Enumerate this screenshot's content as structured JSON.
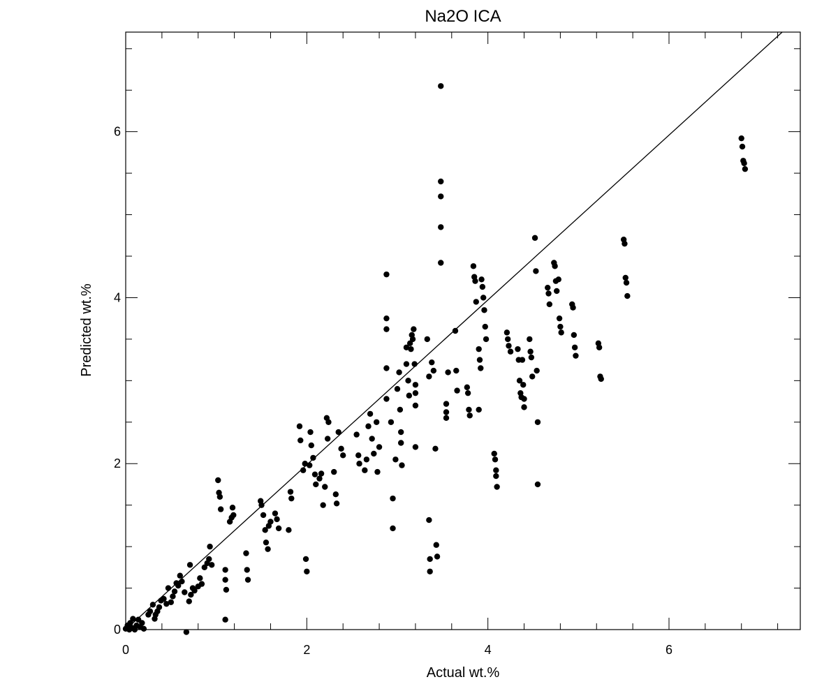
{
  "chart_data": {
    "type": "scatter",
    "title": "Na2O ICA",
    "xlabel": "Actual wt.%",
    "ylabel": "Predicted wt.%",
    "xlim": [
      0,
      7.45
    ],
    "ylim": [
      0,
      7.2
    ],
    "xticks": [
      0,
      2,
      4,
      6
    ],
    "xtick_labels": [
      "0",
      "2",
      "4",
      "6"
    ],
    "yticks": [
      0,
      2,
      4,
      6
    ],
    "ytick_labels": [
      "0",
      "2",
      "4",
      "6"
    ],
    "grid": false,
    "reference_line": {
      "from": [
        0,
        0
      ],
      "to": [
        7.25,
        7.2
      ]
    },
    "series": [
      {
        "marker_color": "#000000",
        "points": [
          [
            0.0,
            0.01
          ],
          [
            0.02,
            0.05
          ],
          [
            0.04,
            0.0
          ],
          [
            0.05,
            0.08
          ],
          [
            0.07,
            0.02
          ],
          [
            0.08,
            0.13
          ],
          [
            0.1,
            0.0
          ],
          [
            0.12,
            0.05
          ],
          [
            0.14,
            0.12
          ],
          [
            0.16,
            0.03
          ],
          [
            0.18,
            0.08
          ],
          [
            0.2,
            0.01
          ],
          [
            0.25,
            0.18
          ],
          [
            0.27,
            0.22
          ],
          [
            0.3,
            0.3
          ],
          [
            0.32,
            0.13
          ],
          [
            0.33,
            0.18
          ],
          [
            0.35,
            0.22
          ],
          [
            0.37,
            0.27
          ],
          [
            0.39,
            0.35
          ],
          [
            0.42,
            0.37
          ],
          [
            0.45,
            0.31
          ],
          [
            0.47,
            0.5
          ],
          [
            0.5,
            0.33
          ],
          [
            0.52,
            0.4
          ],
          [
            0.54,
            0.46
          ],
          [
            0.56,
            0.56
          ],
          [
            0.58,
            0.53
          ],
          [
            0.6,
            0.65
          ],
          [
            0.62,
            0.58
          ],
          [
            0.65,
            0.45
          ],
          [
            0.67,
            -0.03
          ],
          [
            0.7,
            0.34
          ],
          [
            0.71,
            0.78
          ],
          [
            0.72,
            0.42
          ],
          [
            0.74,
            0.5
          ],
          [
            0.76,
            0.47
          ],
          [
            0.8,
            0.52
          ],
          [
            0.82,
            0.62
          ],
          [
            0.84,
            0.55
          ],
          [
            0.87,
            0.75
          ],
          [
            0.9,
            0.8
          ],
          [
            0.92,
            0.85
          ],
          [
            0.93,
            1.0
          ],
          [
            0.95,
            0.78
          ],
          [
            1.02,
            1.8
          ],
          [
            1.03,
            1.65
          ],
          [
            1.04,
            1.6
          ],
          [
            1.05,
            1.45
          ],
          [
            1.1,
            0.72
          ],
          [
            1.1,
            0.6
          ],
          [
            1.11,
            0.48
          ],
          [
            1.1,
            0.12
          ],
          [
            1.15,
            1.3
          ],
          [
            1.17,
            1.35
          ],
          [
            1.18,
            1.47
          ],
          [
            1.19,
            1.38
          ],
          [
            1.33,
            0.92
          ],
          [
            1.34,
            0.72
          ],
          [
            1.35,
            0.6
          ],
          [
            1.49,
            1.55
          ],
          [
            1.5,
            1.5
          ],
          [
            1.52,
            1.38
          ],
          [
            1.54,
            1.2
          ],
          [
            1.55,
            1.05
          ],
          [
            1.57,
            0.97
          ],
          [
            1.58,
            1.25
          ],
          [
            1.6,
            1.3
          ],
          [
            1.65,
            1.4
          ],
          [
            1.67,
            1.33
          ],
          [
            1.69,
            1.22
          ],
          [
            1.8,
            1.2
          ],
          [
            1.82,
            1.66
          ],
          [
            1.83,
            1.58
          ],
          [
            1.92,
            2.45
          ],
          [
            1.93,
            2.28
          ],
          [
            1.96,
            1.92
          ],
          [
            1.98,
            2.0
          ],
          [
            1.99,
            0.85
          ],
          [
            2.0,
            0.7
          ],
          [
            2.03,
            1.98
          ],
          [
            2.04,
            2.38
          ],
          [
            2.05,
            2.22
          ],
          [
            2.07,
            2.07
          ],
          [
            2.09,
            1.87
          ],
          [
            2.1,
            1.75
          ],
          [
            2.14,
            1.82
          ],
          [
            2.16,
            1.88
          ],
          [
            2.18,
            1.5
          ],
          [
            2.2,
            1.72
          ],
          [
            2.22,
            2.55
          ],
          [
            2.23,
            2.3
          ],
          [
            2.24,
            2.5
          ],
          [
            2.3,
            1.9
          ],
          [
            2.32,
            1.63
          ],
          [
            2.33,
            1.52
          ],
          [
            2.35,
            2.38
          ],
          [
            2.38,
            2.18
          ],
          [
            2.4,
            2.1
          ],
          [
            2.55,
            2.35
          ],
          [
            2.57,
            2.1
          ],
          [
            2.58,
            2.0
          ],
          [
            2.64,
            1.92
          ],
          [
            2.66,
            2.05
          ],
          [
            2.68,
            2.45
          ],
          [
            2.7,
            2.6
          ],
          [
            2.72,
            2.3
          ],
          [
            2.74,
            2.12
          ],
          [
            2.77,
            2.5
          ],
          [
            2.78,
            1.9
          ],
          [
            2.8,
            2.2
          ],
          [
            2.88,
            4.28
          ],
          [
            2.88,
            3.75
          ],
          [
            2.88,
            3.62
          ],
          [
            2.88,
            3.15
          ],
          [
            2.88,
            2.78
          ],
          [
            2.93,
            2.5
          ],
          [
            2.95,
            1.58
          ],
          [
            2.95,
            1.22
          ],
          [
            2.98,
            2.05
          ],
          [
            3.0,
            2.9
          ],
          [
            3.02,
            3.1
          ],
          [
            3.03,
            2.65
          ],
          [
            3.04,
            2.38
          ],
          [
            3.04,
            2.25
          ],
          [
            3.05,
            1.98
          ],
          [
            3.1,
            3.4
          ],
          [
            3.1,
            3.2
          ],
          [
            3.12,
            3.0
          ],
          [
            3.13,
            2.82
          ],
          [
            3.14,
            3.45
          ],
          [
            3.15,
            3.38
          ],
          [
            3.16,
            3.55
          ],
          [
            3.17,
            3.5
          ],
          [
            3.18,
            3.62
          ],
          [
            3.19,
            3.2
          ],
          [
            3.2,
            2.95
          ],
          [
            3.2,
            2.85
          ],
          [
            3.2,
            2.7
          ],
          [
            3.2,
            2.2
          ],
          [
            3.33,
            3.5
          ],
          [
            3.35,
            3.05
          ],
          [
            3.35,
            1.32
          ],
          [
            3.36,
            0.85
          ],
          [
            3.36,
            0.7
          ],
          [
            3.38,
            3.22
          ],
          [
            3.4,
            3.12
          ],
          [
            3.42,
            2.18
          ],
          [
            3.43,
            1.02
          ],
          [
            3.44,
            0.88
          ],
          [
            3.48,
            6.55
          ],
          [
            3.48,
            5.4
          ],
          [
            3.48,
            5.22
          ],
          [
            3.48,
            4.85
          ],
          [
            3.48,
            4.42
          ],
          [
            3.54,
            2.72
          ],
          [
            3.54,
            2.62
          ],
          [
            3.54,
            2.55
          ],
          [
            3.56,
            3.1
          ],
          [
            3.64,
            3.6
          ],
          [
            3.65,
            3.12
          ],
          [
            3.66,
            2.88
          ],
          [
            3.77,
            2.92
          ],
          [
            3.78,
            2.85
          ],
          [
            3.79,
            2.65
          ],
          [
            3.8,
            2.58
          ],
          [
            3.84,
            4.38
          ],
          [
            3.85,
            4.25
          ],
          [
            3.86,
            4.2
          ],
          [
            3.87,
            3.95
          ],
          [
            3.9,
            3.38
          ],
          [
            3.91,
            3.25
          ],
          [
            3.92,
            3.15
          ],
          [
            3.93,
            4.22
          ],
          [
            3.94,
            4.13
          ],
          [
            3.95,
            4.0
          ],
          [
            3.96,
            3.85
          ],
          [
            3.97,
            3.65
          ],
          [
            3.98,
            3.5
          ],
          [
            3.9,
            2.65
          ],
          [
            4.07,
            2.12
          ],
          [
            4.08,
            2.05
          ],
          [
            4.09,
            1.92
          ],
          [
            4.09,
            1.85
          ],
          [
            4.1,
            1.72
          ],
          [
            4.21,
            3.58
          ],
          [
            4.22,
            3.5
          ],
          [
            4.23,
            3.42
          ],
          [
            4.25,
            3.35
          ],
          [
            4.33,
            3.38
          ],
          [
            4.34,
            3.25
          ],
          [
            4.35,
            3.0
          ],
          [
            4.36,
            2.85
          ],
          [
            4.37,
            2.8
          ],
          [
            4.38,
            3.25
          ],
          [
            4.39,
            2.95
          ],
          [
            4.4,
            2.78
          ],
          [
            4.4,
            2.68
          ],
          [
            4.46,
            3.5
          ],
          [
            4.47,
            3.35
          ],
          [
            4.48,
            3.28
          ],
          [
            4.49,
            3.05
          ],
          [
            4.52,
            4.72
          ],
          [
            4.53,
            4.32
          ],
          [
            4.54,
            3.12
          ],
          [
            4.55,
            2.5
          ],
          [
            4.55,
            1.75
          ],
          [
            4.66,
            4.12
          ],
          [
            4.67,
            4.05
          ],
          [
            4.68,
            3.92
          ],
          [
            4.73,
            4.42
          ],
          [
            4.74,
            4.38
          ],
          [
            4.75,
            4.2
          ],
          [
            4.76,
            4.08
          ],
          [
            4.78,
            4.22
          ],
          [
            4.79,
            3.75
          ],
          [
            4.8,
            3.65
          ],
          [
            4.81,
            3.58
          ],
          [
            4.93,
            3.92
          ],
          [
            4.94,
            3.88
          ],
          [
            4.95,
            3.55
          ],
          [
            4.96,
            3.4
          ],
          [
            4.97,
            3.3
          ],
          [
            5.22,
            3.45
          ],
          [
            5.23,
            3.4
          ],
          [
            5.24,
            3.05
          ],
          [
            5.25,
            3.02
          ],
          [
            5.5,
            4.7
          ],
          [
            5.51,
            4.65
          ],
          [
            5.52,
            4.24
          ],
          [
            5.53,
            4.18
          ],
          [
            5.54,
            4.02
          ],
          [
            6.8,
            5.92
          ],
          [
            6.81,
            5.82
          ],
          [
            6.82,
            5.65
          ],
          [
            6.83,
            5.62
          ],
          [
            6.84,
            5.55
          ]
        ]
      }
    ]
  }
}
